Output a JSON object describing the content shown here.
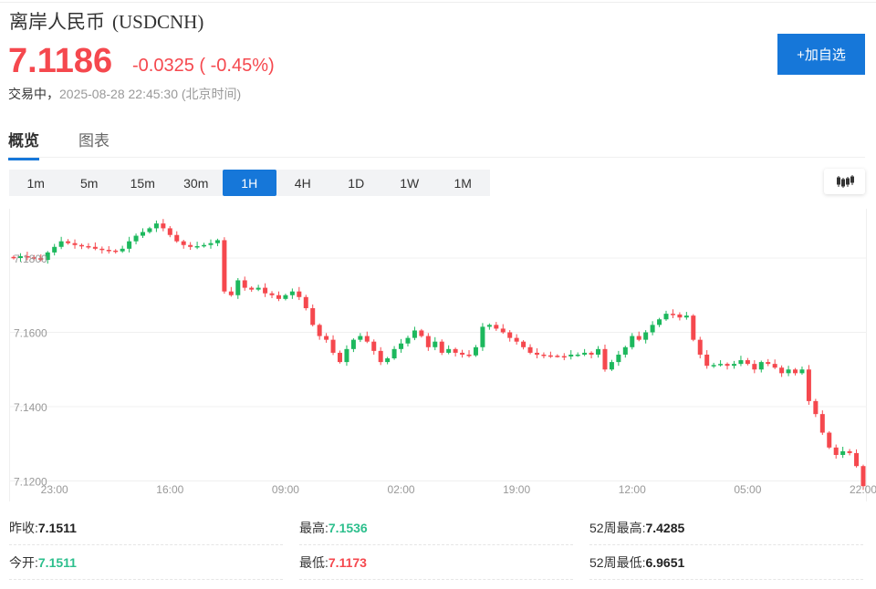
{
  "header": {
    "name": "离岸人民币",
    "code": "(USDCNH)",
    "price": "7.1186",
    "change": "-0.0325 ( -0.45%)",
    "status": "交易中，",
    "time": "2025-08-28 22:45:30 (北京时间)",
    "add_watchlist": "+加自选"
  },
  "tabs": [
    {
      "label": "概览"
    },
    {
      "label": "图表"
    }
  ],
  "periods": [
    "1m",
    "5m",
    "15m",
    "30m",
    "1H",
    "4H",
    "1D",
    "1W",
    "1M"
  ],
  "active_period": "1H",
  "chart_type_icon": "candlestick-icon",
  "colors": {
    "up": "#1db85d",
    "down": "#f5484e",
    "accent": "#1677d9",
    "stat_green": "#2dbf8d"
  },
  "stats": [
    {
      "label": "昨收:",
      "value": "7.1511",
      "color": "#222"
    },
    {
      "label": "最高:",
      "value": "7.1536",
      "color": "#2dbf8d"
    },
    {
      "label": "52周最高:",
      "value": "7.4285",
      "color": "#222"
    },
    {
      "label": "今开:",
      "value": "7.1511",
      "color": "#2dbf8d"
    },
    {
      "label": "最低:",
      "value": "7.1173",
      "color": "#f5484e"
    },
    {
      "label": "52周最低:",
      "value": "6.9651",
      "color": "#222"
    }
  ],
  "chart_data": {
    "type": "candlestick",
    "y_ticks": [
      "7.1800",
      "7.1600",
      "7.1400",
      "7.1200"
    ],
    "ylim": [
      7.118,
      7.193
    ],
    "x_ticks": [
      "23:00",
      "16:00",
      "09:00",
      "02:00",
      "19:00",
      "12:00",
      "05:00",
      "22:00"
    ],
    "grid": true,
    "close": [
      7.18,
      7.1805,
      7.1802,
      7.18,
      7.1795,
      7.1815,
      7.183,
      7.1845,
      7.184,
      7.1835,
      7.1832,
      7.183,
      7.1825,
      7.1822,
      7.182,
      7.1818,
      7.1825,
      7.1845,
      7.186,
      7.187,
      7.188,
      7.1893,
      7.188,
      7.1862,
      7.1845,
      7.1835,
      7.183,
      7.1832,
      7.1835,
      7.184,
      7.1848,
      7.171,
      7.17,
      7.174,
      7.172,
      7.1715,
      7.172,
      7.1705,
      7.17,
      7.169,
      7.17,
      7.171,
      7.1695,
      7.1665,
      7.162,
      7.159,
      7.158,
      7.1545,
      7.152,
      7.1555,
      7.158,
      7.159,
      7.1575,
      7.155,
      7.152,
      7.153,
      7.1555,
      7.157,
      7.1585,
      7.1605,
      7.159,
      7.156,
      7.1575,
      7.1545,
      7.1555,
      7.1545,
      7.154,
      7.1538,
      7.156,
      7.1615,
      7.162,
      7.161,
      7.16,
      7.1585,
      7.1575,
      7.156,
      7.1545,
      7.154,
      7.1538,
      7.1537,
      7.1536,
      7.1535,
      7.154,
      7.154,
      7.1545,
      7.154,
      7.1555,
      7.15,
      7.152,
      7.154,
      7.156,
      7.159,
      7.158,
      7.16,
      7.162,
      7.1635,
      7.165,
      7.1648,
      7.164,
      7.1645,
      7.158,
      7.154,
      7.151,
      7.1512,
      7.1515,
      7.151,
      7.1515,
      7.1525,
      7.1515,
      7.15,
      7.152,
      7.1515,
      7.1505,
      7.149,
      7.15,
      7.149,
      7.15,
      7.1415,
      7.138,
      7.133,
      7.129,
      7.127,
      7.128,
      7.1275,
      7.124,
      7.1186
    ]
  }
}
